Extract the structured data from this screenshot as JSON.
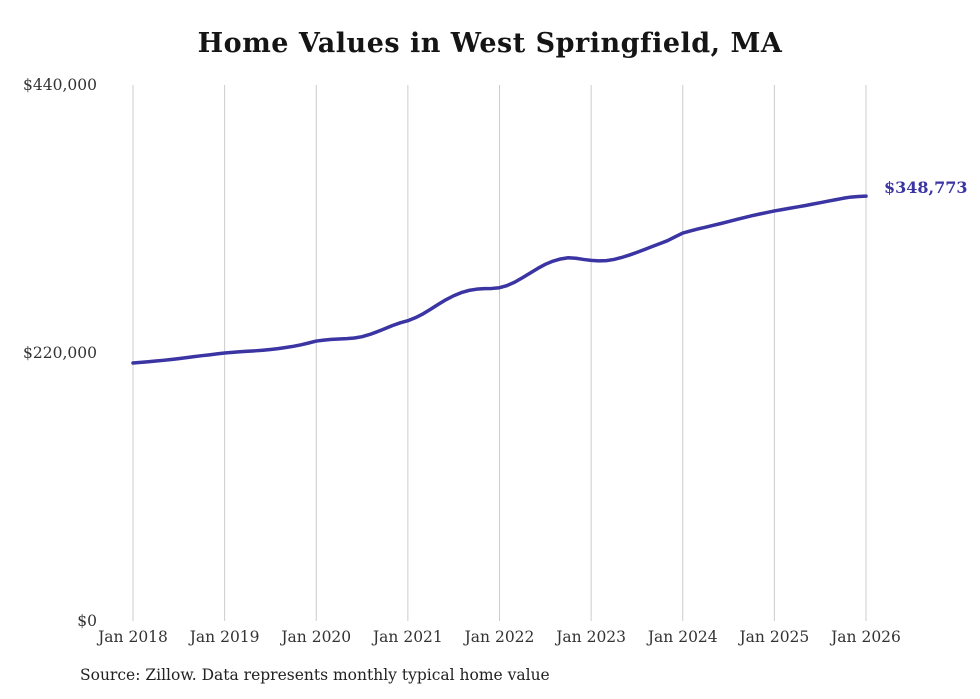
{
  "chart_data": {
    "type": "line",
    "title": "Home Values in West Springfield, MA",
    "source": "Source: Zillow. Data represents monthly typical home value",
    "end_label": "$348,773",
    "end_value": 348773,
    "x_tick_labels": [
      "Jan 2018",
      "Jan 2019",
      "Jan 2020",
      "Jan 2021",
      "Jan 2022",
      "Jan 2023",
      "Jan 2024",
      "Jan 2025",
      "Jan 2026"
    ],
    "y_tick_labels": [
      "$0",
      "$220,000",
      "$440,000"
    ],
    "y_ticks": [
      0,
      220000,
      440000
    ],
    "ylim": [
      0,
      440000
    ],
    "x_start": "Jan 2018",
    "x_end": "Jan 2026",
    "x_interval": "monthly",
    "legend": "none",
    "grid": "vertical-only",
    "line_color": "#3b34a3",
    "grid_color": "#cccccc",
    "values": [
      211800,
      212300,
      212800,
      213400,
      214000,
      214700,
      215400,
      216200,
      217000,
      217800,
      218500,
      219300,
      220000,
      220500,
      221000,
      221400,
      221800,
      222300,
      222900,
      223600,
      224500,
      225500,
      226700,
      228200,
      229800,
      230600,
      231200,
      231500,
      231800,
      232300,
      233400,
      235200,
      237500,
      240000,
      242600,
      244800,
      246500,
      249000,
      252200,
      256000,
      260000,
      263800,
      267000,
      269600,
      271400,
      272400,
      272800,
      273000,
      273600,
      275400,
      278200,
      281800,
      285600,
      289400,
      292800,
      295400,
      297200,
      298200,
      297800,
      296800,
      296000,
      295600,
      295800,
      296800,
      298400,
      300400,
      302600,
      305000,
      307400,
      309800,
      312200,
      315400,
      318500,
      320200,
      321800,
      323300,
      324800,
      326300,
      327900,
      329500,
      331100,
      332600,
      334000,
      335300,
      336600,
      337700,
      338800,
      339900,
      341000,
      342200,
      343400,
      344600,
      345800,
      347000,
      348000,
      348500,
      348773
    ]
  }
}
